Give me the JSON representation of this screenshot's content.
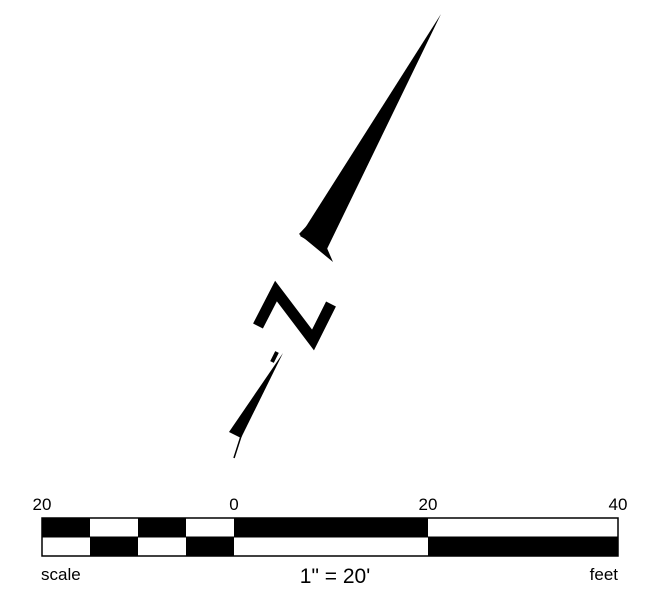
{
  "north_arrow": {
    "letter": "N",
    "icon": "north-arrow-icon"
  },
  "scale_bar": {
    "tick_labels": [
      "20",
      "0",
      "20",
      "40"
    ],
    "left_label": "scale",
    "ratio_label": "1\" = 20'",
    "units_label": "feet",
    "colors": {
      "fill": "#000000",
      "background": "#ffffff"
    }
  }
}
